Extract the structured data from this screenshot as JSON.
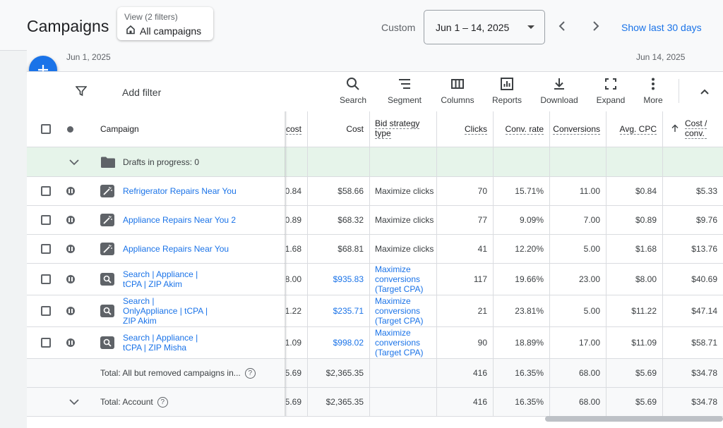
{
  "header": {
    "title": "Campaigns",
    "view_label": "View (2 filters)",
    "view_value": "All campaigns",
    "custom_label": "Custom",
    "date_range": "Jun 1 – 14, 2025",
    "show_last": "Show last 30 days"
  },
  "axis": {
    "start": "Jun 1, 2025",
    "end": "Jun 14, 2025"
  },
  "toolbar": {
    "add_filter": "Add filter",
    "search": "Search",
    "segment": "Segment",
    "columns": "Columns",
    "reports": "Reports",
    "download": "Download",
    "expand": "Expand",
    "more": "More"
  },
  "table": {
    "headers": {
      "campaign": "Campaign",
      "cost_partial": "cost",
      "cost": "Cost",
      "bid_strategy_line1": "Bid strategy",
      "bid_strategy_line2": "type",
      "clicks": "Clicks",
      "conv_rate": "Conv. rate",
      "conversions": "Conversions",
      "avg_cpc": "Avg. CPC",
      "cost_conv_line1": "Cost /",
      "cost_conv_line2": "conv."
    },
    "drafts": "Drafts in progress: 0",
    "rows": [
      {
        "name": [
          "Refrigerator Repairs Near You"
        ],
        "cpc_partial": "0.84",
        "cost": "$58.66",
        "bid": [
          "Maximize clicks"
        ],
        "clicks": "70",
        "conv_rate": "15.71%",
        "conversions": "11.00",
        "avg_cpc": "$0.84",
        "cost_conv": "$5.33"
      },
      {
        "name": [
          "Appliance Repairs Near You 2"
        ],
        "cpc_partial": "0.89",
        "cost": "$68.32",
        "bid": [
          "Maximize clicks"
        ],
        "clicks": "77",
        "conv_rate": "9.09%",
        "conversions": "7.00",
        "avg_cpc": "$0.89",
        "cost_conv": "$9.76"
      },
      {
        "name": [
          "Appliance Repairs Near You"
        ],
        "cpc_partial": "1.68",
        "cost": "$68.81",
        "bid": [
          "Maximize clicks"
        ],
        "clicks": "41",
        "conv_rate": "12.20%",
        "conversions": "5.00",
        "avg_cpc": "$1.68",
        "cost_conv": "$13.76"
      },
      {
        "name": [
          "Search | Appliance |",
          "tCPA | ZIP Akim"
        ],
        "cpc_partial": "8.00",
        "cost": "$935.83",
        "bid": [
          "Maximize",
          "conversions",
          "(Target CPA)"
        ],
        "clicks": "117",
        "conv_rate": "19.66%",
        "conversions": "23.00",
        "avg_cpc": "$8.00",
        "cost_conv": "$40.69"
      },
      {
        "name": [
          "Search |",
          "OnlyAppliance | tCPA |",
          "ZIP Akim"
        ],
        "cpc_partial": "1.22",
        "cost": "$235.71",
        "bid": [
          "Maximize",
          "conversions",
          "(Target CPA)"
        ],
        "clicks": "21",
        "conv_rate": "23.81%",
        "conversions": "5.00",
        "avg_cpc": "$11.22",
        "cost_conv": "$47.14"
      },
      {
        "name": [
          "Search | Appliance |",
          "tCPA | ZIP Misha"
        ],
        "cpc_partial": "1.09",
        "cost": "$998.02",
        "bid": [
          "Maximize",
          "conversions",
          "(Target CPA)"
        ],
        "clicks": "90",
        "conv_rate": "18.89%",
        "conversions": "17.00",
        "avg_cpc": "$11.09",
        "cost_conv": "$58.71"
      }
    ],
    "totals": [
      {
        "label": "Total: All but removed campaigns in...",
        "cpc_partial": "5.69",
        "cost": "$2,365.35",
        "clicks": "416",
        "conv_rate": "16.35%",
        "conversions": "68.00",
        "avg_cpc": "$5.69",
        "cost_conv": "$34.78"
      },
      {
        "label": "Total: Account",
        "cpc_partial": "5.69",
        "cost": "$2,365.35",
        "clicks": "416",
        "conv_rate": "16.35%",
        "conversions": "68.00",
        "avg_cpc": "$5.69",
        "cost_conv": "$34.78"
      }
    ]
  },
  "colors": {
    "accent": "#1a73e8",
    "draft_bg": "#e6f4ea",
    "icon_gray": "#5f6368"
  },
  "icons": [
    "home-icon",
    "caret-down-icon",
    "chevron-left-icon",
    "chevron-right-icon",
    "plus-icon",
    "filter-icon",
    "search-icon",
    "segment-icon",
    "columns-icon",
    "reports-icon",
    "download-icon",
    "expand-icon",
    "more-icon",
    "chevron-up-icon",
    "chevron-down-icon",
    "folder-icon",
    "pause-icon",
    "magic-wand-icon",
    "search-campaign-icon",
    "help-icon",
    "sort-arrow-up-icon"
  ]
}
